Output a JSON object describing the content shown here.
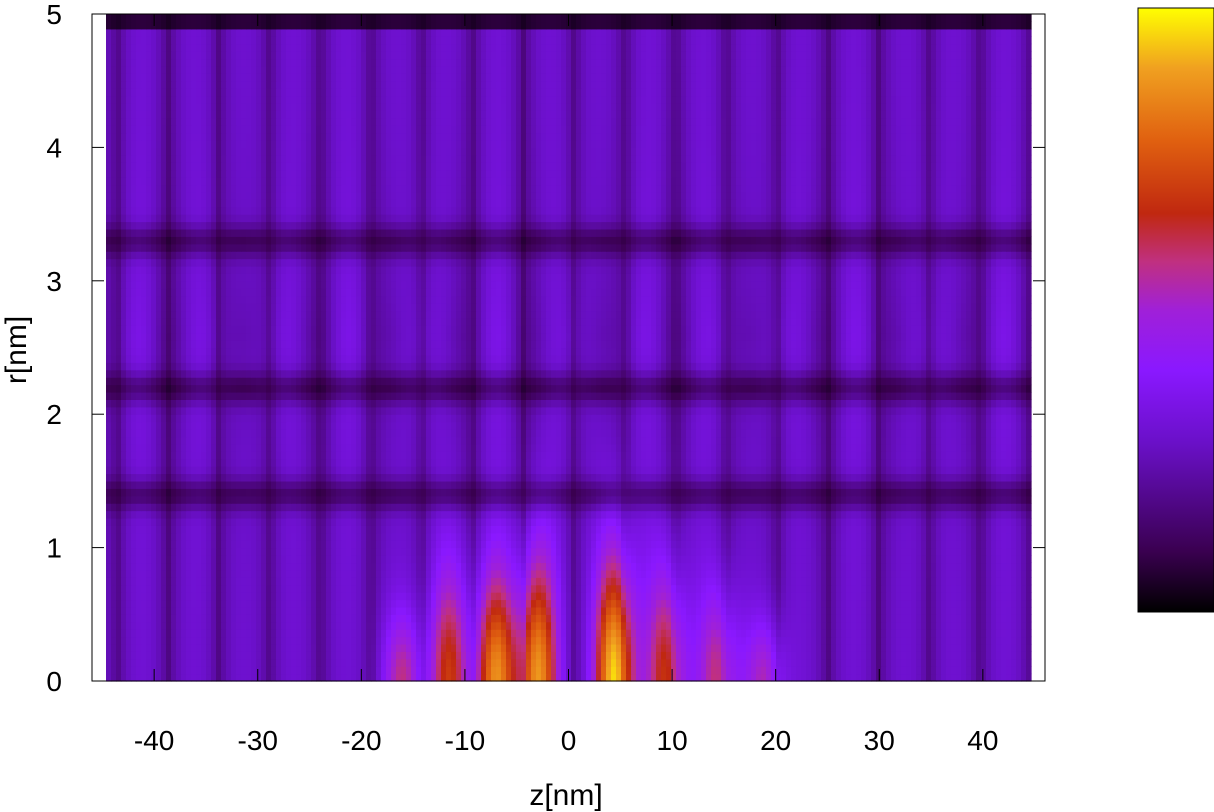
{
  "chart_data": {
    "type": "heatmap",
    "title": "",
    "xlabel": "z[nm]",
    "ylabel": "r[nm]",
    "xlim": [
      -46,
      46
    ],
    "ylim": [
      0,
      5
    ],
    "x_ticks": [
      -40,
      -30,
      -20,
      -10,
      0,
      10,
      20,
      30,
      40
    ],
    "x_tick_labels": [
      "-40",
      "-30",
      "-20",
      "-10",
      "0",
      "10",
      "20",
      "30",
      "40"
    ],
    "y_ticks": [
      0,
      1,
      2,
      3,
      4,
      5
    ],
    "y_tick_labels": [
      "0",
      "1",
      "2",
      "3",
      "4",
      "5"
    ],
    "colormap": [
      "#000000",
      "#3a0050",
      "#6a10c8",
      "#8a18ff",
      "#a020d8",
      "#c03080",
      "#c02810",
      "#e06010",
      "#f0a020",
      "#ffff00"
    ],
    "colorbar": true,
    "grid": false,
    "lobes": [
      {
        "z": -16,
        "peak": 0.58,
        "r_extent": 0.55
      },
      {
        "z": -11.5,
        "peak": 0.7,
        "r_extent": 0.9
      },
      {
        "z": -7,
        "peak": 0.86,
        "r_extent": 0.85
      },
      {
        "z": -3,
        "peak": 0.9,
        "r_extent": 1.0
      },
      {
        "z": 4.5,
        "peak": 1.0,
        "r_extent": 1.0
      },
      {
        "z": 9.5,
        "peak": 0.72,
        "r_extent": 0.9
      },
      {
        "z": 14.5,
        "peak": 0.62,
        "r_extent": 0.75
      },
      {
        "z": 19,
        "peak": 0.55,
        "r_extent": 0.5
      }
    ],
    "nodes_z": [
      -26,
      -23.5,
      -14,
      -9,
      -0.5,
      7,
      12,
      17,
      21,
      26,
      31,
      36,
      41
    ],
    "nodes_r": [
      1.4,
      2.2,
      3.3
    ]
  }
}
